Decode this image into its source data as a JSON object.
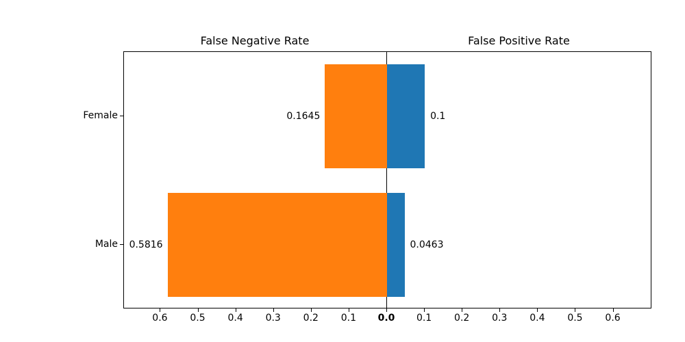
{
  "chart_data": {
    "type": "bar",
    "variant": "diverging-horizontal",
    "categories": [
      "Female",
      "Male"
    ],
    "series": [
      {
        "name": "False Negative Rate",
        "side": "left",
        "color": "#ff7f0e",
        "values": [
          0.1645,
          0.5816
        ],
        "value_labels": [
          "0.1645",
          "0.5816"
        ]
      },
      {
        "name": "False Positive Rate",
        "side": "right",
        "color": "#1f77b4",
        "values": [
          0.1,
          0.0463
        ],
        "value_labels": [
          "0.1",
          "0.0463"
        ]
      }
    ],
    "x_ticks": [
      {
        "value": 0.0,
        "label": "0.0"
      },
      {
        "value": 0.1,
        "label": "0.1"
      },
      {
        "value": 0.2,
        "label": "0.2"
      },
      {
        "value": 0.3,
        "label": "0.3"
      },
      {
        "value": 0.4,
        "label": "0.4"
      },
      {
        "value": 0.5,
        "label": "0.5"
      },
      {
        "value": 0.6,
        "label": "0.6"
      }
    ],
    "xlim_per_side": 0.697,
    "bar_height_frac": 0.81,
    "grid": false,
    "background_color": "#ffffff",
    "axis_color": "#000000",
    "text_color": "#000000"
  }
}
